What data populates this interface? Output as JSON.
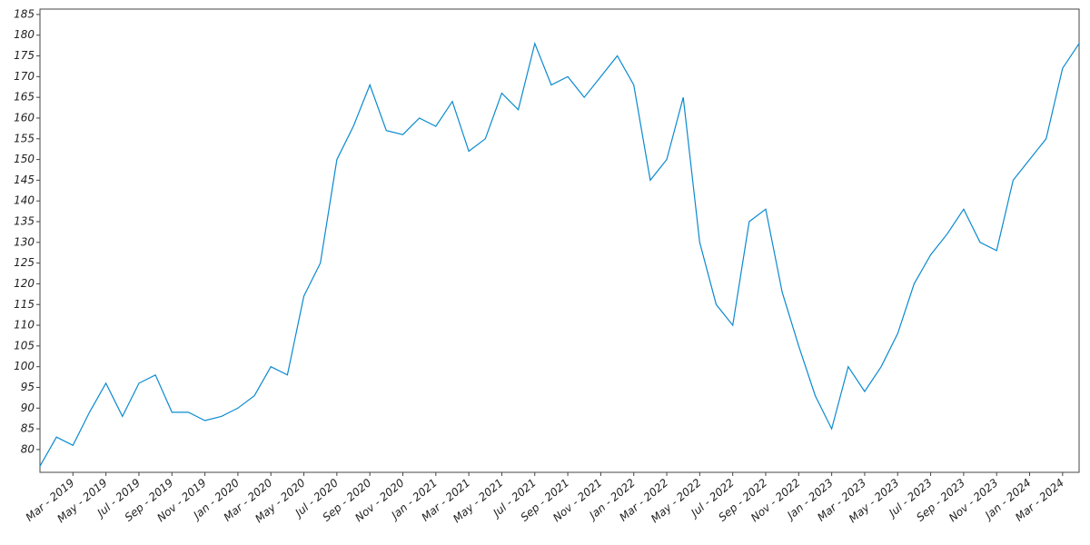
{
  "chart_data": {
    "type": "line",
    "x": [
      "2019-01",
      "2019-02",
      "2019-03",
      "2019-04",
      "2019-05",
      "2019-06",
      "2019-07",
      "2019-08",
      "2019-09",
      "2019-10",
      "2019-11",
      "2019-12",
      "2020-01",
      "2020-02",
      "2020-03",
      "2020-04",
      "2020-05",
      "2020-06",
      "2020-07",
      "2020-08",
      "2020-09",
      "2020-10",
      "2020-11",
      "2020-12",
      "2021-01",
      "2021-02",
      "2021-03",
      "2021-04",
      "2021-05",
      "2021-06",
      "2021-07",
      "2021-08",
      "2021-09",
      "2021-10",
      "2021-11",
      "2021-12",
      "2022-01",
      "2022-02",
      "2022-03",
      "2022-04",
      "2022-05",
      "2022-06",
      "2022-07",
      "2022-08",
      "2022-09",
      "2022-10",
      "2022-11",
      "2022-12",
      "2023-01",
      "2023-02",
      "2023-03",
      "2023-04",
      "2023-05",
      "2023-06",
      "2023-07",
      "2023-08",
      "2023-09",
      "2023-10",
      "2023-11",
      "2023-12",
      "2024-01",
      "2024-02",
      "2024-03",
      "2024-04"
    ],
    "values": [
      76,
      83,
      81,
      89,
      96,
      88,
      96,
      98,
      89,
      89,
      87,
      88,
      90,
      93,
      100,
      98,
      117,
      125,
      150,
      158,
      168,
      157,
      156,
      160,
      158,
      164,
      152,
      155,
      166,
      162,
      178,
      168,
      170,
      165,
      170,
      175,
      168,
      145,
      150,
      165,
      130,
      115,
      110,
      135,
      138,
      118,
      105,
      93,
      85,
      100,
      94,
      100,
      108,
      120,
      127,
      132,
      138,
      130,
      128,
      145,
      150,
      155,
      172,
      178
    ],
    "color": "#0a8ad0",
    "xlim": [
      "2019-01",
      "2024-04"
    ],
    "xticks": [
      {
        "value": "2019-03",
        "label": "Mar - 2019"
      },
      {
        "value": "2019-05",
        "label": "May - 2019"
      },
      {
        "value": "2019-07",
        "label": "Jul - 2019"
      },
      {
        "value": "2019-09",
        "label": "Sep - 2019"
      },
      {
        "value": "2019-11",
        "label": "Nov - 2019"
      },
      {
        "value": "2020-01",
        "label": "Jan - 2020"
      },
      {
        "value": "2020-03",
        "label": "Mar - 2020"
      },
      {
        "value": "2020-05",
        "label": "May - 2020"
      },
      {
        "value": "2020-07",
        "label": "Jul - 2020"
      },
      {
        "value": "2020-09",
        "label": "Sep - 2020"
      },
      {
        "value": "2020-11",
        "label": "Nov - 2020"
      },
      {
        "value": "2021-01",
        "label": "Jan - 2021"
      },
      {
        "value": "2021-03",
        "label": "Mar - 2021"
      },
      {
        "value": "2021-05",
        "label": "May - 2021"
      },
      {
        "value": "2021-07",
        "label": "Jul - 2021"
      },
      {
        "value": "2021-09",
        "label": "Sep - 2021"
      },
      {
        "value": "2021-11",
        "label": "Nov - 2021"
      },
      {
        "value": "2022-01",
        "label": "Jan - 2022"
      },
      {
        "value": "2022-03",
        "label": "Mar - 2022"
      },
      {
        "value": "2022-05",
        "label": "May - 2022"
      },
      {
        "value": "2022-07",
        "label": "Jul - 2022"
      },
      {
        "value": "2022-09",
        "label": "Sep - 2022"
      },
      {
        "value": "2022-11",
        "label": "Nov - 2022"
      },
      {
        "value": "2023-01",
        "label": "Jan - 2023"
      },
      {
        "value": "2023-03",
        "label": "Mar - 2023"
      },
      {
        "value": "2023-05",
        "label": "May - 2023"
      },
      {
        "value": "2023-07",
        "label": "Jul - 2023"
      },
      {
        "value": "2023-09",
        "label": "Sep - 2023"
      },
      {
        "value": "2023-11",
        "label": "Nov - 2023"
      },
      {
        "value": "2024-01",
        "label": "Jan - 2024"
      },
      {
        "value": "2024-03",
        "label": "Mar - 2024"
      }
    ],
    "ylim": [
      74.5,
      186.3
    ],
    "yticks": [
      80,
      85,
      90,
      95,
      100,
      105,
      110,
      115,
      120,
      125,
      130,
      135,
      140,
      145,
      150,
      155,
      160,
      165,
      170,
      175,
      180,
      185
    ],
    "grid": false
  }
}
